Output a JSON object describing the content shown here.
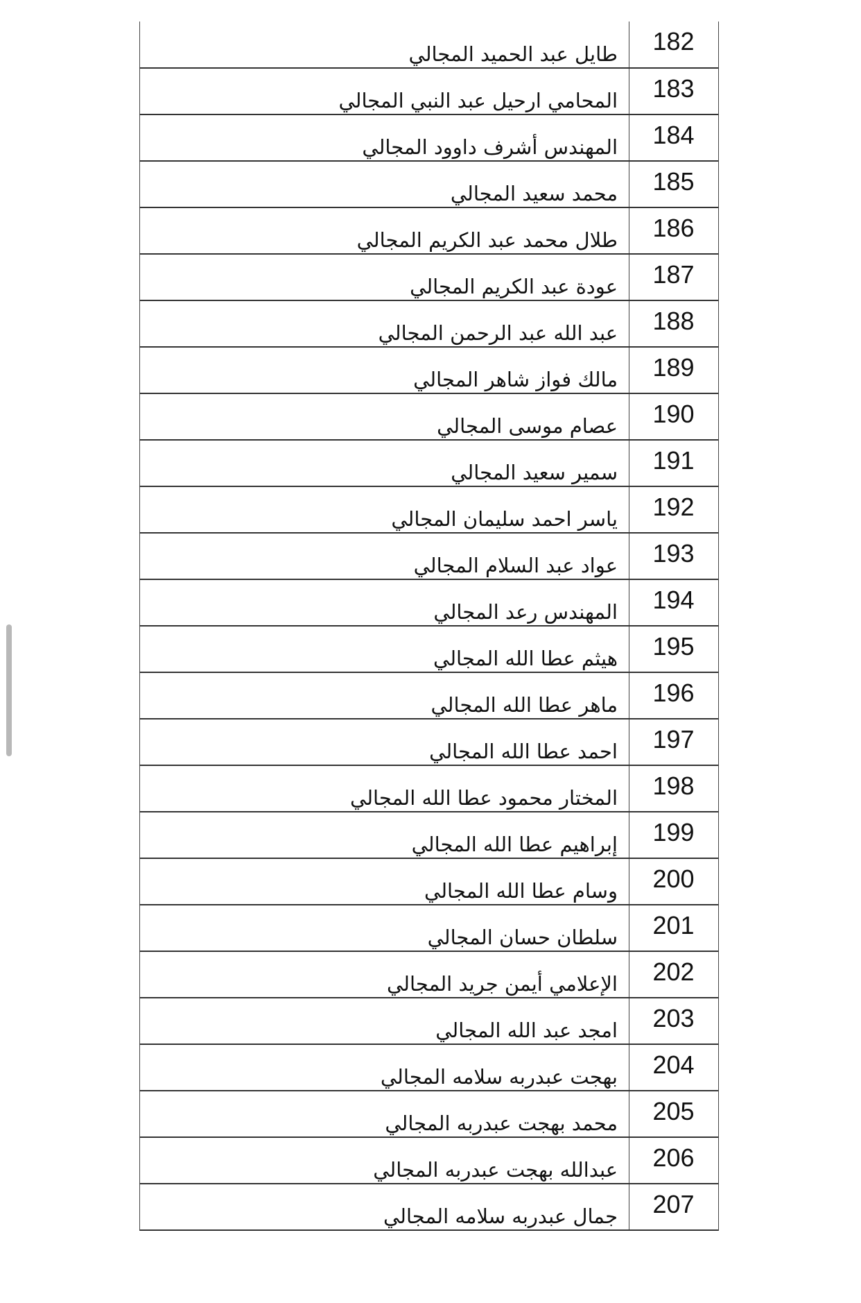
{
  "rows": [
    {
      "number": "182",
      "name": "طايل عبد الحميد المجالي"
    },
    {
      "number": "183",
      "name": "المحامي ارحيل عبد النبي المجالي"
    },
    {
      "number": "184",
      "name": "المهندس أشرف داوود المجالي"
    },
    {
      "number": "185",
      "name": "محمد سعيد المجالي"
    },
    {
      "number": "186",
      "name": "طلال محمد عبد الكريم المجالي"
    },
    {
      "number": "187",
      "name": "عودة عبد الكريم المجالي"
    },
    {
      "number": "188",
      "name": "عبد الله عبد الرحمن المجالي"
    },
    {
      "number": "189",
      "name": "مالك فواز شاهر المجالي"
    },
    {
      "number": "190",
      "name": "عصام موسى المجالي"
    },
    {
      "number": "191",
      "name": "سمير سعيد المجالي"
    },
    {
      "number": "192",
      "name": "ياسر احمد سليمان المجالي"
    },
    {
      "number": "193",
      "name": "عواد عبد السلام المجالي"
    },
    {
      "number": "194",
      "name": "المهندس رعد المجالي"
    },
    {
      "number": "195",
      "name": "هيثم عطا الله المجالي"
    },
    {
      "number": "196",
      "name": "ماهر عطا الله المجالي"
    },
    {
      "number": "197",
      "name": "احمد عطا الله المجالي"
    },
    {
      "number": "198",
      "name": "المختار محمود عطا الله المجالي"
    },
    {
      "number": "199",
      "name": "إبراهيم عطا الله المجالي"
    },
    {
      "number": "200",
      "name": "وسام عطا الله المجالي"
    },
    {
      "number": "201",
      "name": "سلطان حسان المجالي"
    },
    {
      "number": "202",
      "name": "الإعلامي أيمن جريد المجالي"
    },
    {
      "number": "203",
      "name": "امجد عبد الله المجالي"
    },
    {
      "number": "204",
      "name": "بهجت عبدربه سلامه المجالي"
    },
    {
      "number": "205",
      "name": "محمد بهجت عبدربه المجالي"
    },
    {
      "number": "206",
      "name": "عبدالله بهجت عبدربه المجالي"
    },
    {
      "number": "207",
      "name": "جمال عبدربه سلامه المجالي"
    }
  ]
}
